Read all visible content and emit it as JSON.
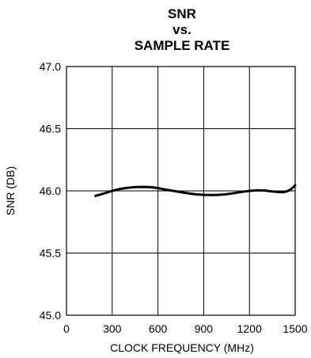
{
  "chart_data": {
    "type": "line",
    "title_lines": [
      "SNR",
      "vs.",
      "SAMPLE RATE"
    ],
    "xlabel": "CLOCK FREQUENCY (MHz)",
    "ylabel": "SNR (DB)",
    "xlim": [
      0,
      1500
    ],
    "ylim": [
      45.0,
      47.0
    ],
    "x_ticks": [
      0,
      300,
      600,
      900,
      1200,
      1500
    ],
    "x_tick_labels": [
      "0",
      "300",
      "600",
      "900",
      "1200",
      "1500"
    ],
    "y_ticks": [
      45.0,
      45.5,
      46.0,
      46.5,
      47.0
    ],
    "y_tick_labels": [
      "45.0",
      "45.5",
      "46.0",
      "46.5",
      "47.0"
    ],
    "grid": true,
    "series": [
      {
        "x": [
          190,
          250,
          300,
          350,
          400,
          450,
          500,
          550,
          600,
          650,
          700,
          750,
          800,
          850,
          900,
          950,
          1000,
          1050,
          1100,
          1150,
          1200,
          1250,
          1300,
          1350,
          1400,
          1425,
          1450,
          1475,
          1500
        ],
        "y": [
          45.96,
          45.98,
          46.0,
          46.015,
          46.025,
          46.03,
          46.032,
          46.03,
          46.022,
          46.01,
          46.0,
          45.99,
          45.98,
          45.972,
          45.968,
          45.966,
          45.968,
          45.973,
          45.982,
          45.992,
          46.0,
          46.005,
          46.003,
          45.995,
          45.99,
          45.99,
          45.998,
          46.015,
          46.045
        ]
      }
    ]
  }
}
